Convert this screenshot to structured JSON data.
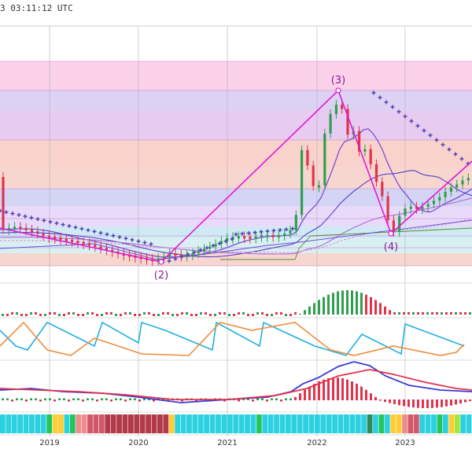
{
  "header": {
    "timestamp": "3 03:11:12 UTC"
  },
  "colors": {
    "bull": "#2e9e4f",
    "bull_bright": "#33cc33",
    "bear": "#e0344d",
    "magenta": "#e01ad8",
    "purple": "#6a5acd",
    "cross": "#4b3fae",
    "blue_line": "#1fb0e0",
    "orange_line": "#f08c3a",
    "macd_blue": "#3b3bd6",
    "macd_red": "#e0344d"
  },
  "chart_data": [
    {
      "type": "candlestick",
      "panel": "price",
      "x_ticks": [
        "2019",
        "2020",
        "2021",
        "2022",
        "2023"
      ],
      "wave_labels": [
        "(2)",
        "(3)",
        "(4)"
      ],
      "fib_bands": [
        "#fbd2ea",
        "#ddd2f3",
        "#e7cbf0",
        "#f9d2cc",
        "#f7d6d0",
        "#d4d4f5",
        "#e9dafa",
        "#cfeaf5",
        "#d9f0f3",
        "#f7d6d0"
      ]
    },
    {
      "type": "bar",
      "panel": "histogram-1",
      "note": "red/green momentum histogram"
    },
    {
      "type": "line",
      "panel": "oscillator",
      "series_colors": [
        "#1fb0e0",
        "#f08c3a"
      ]
    },
    {
      "type": "line",
      "panel": "macd",
      "series_colors": [
        "#3b3bd6",
        "#e0344d"
      ]
    },
    {
      "type": "heatmap",
      "panel": "color-strip"
    }
  ]
}
